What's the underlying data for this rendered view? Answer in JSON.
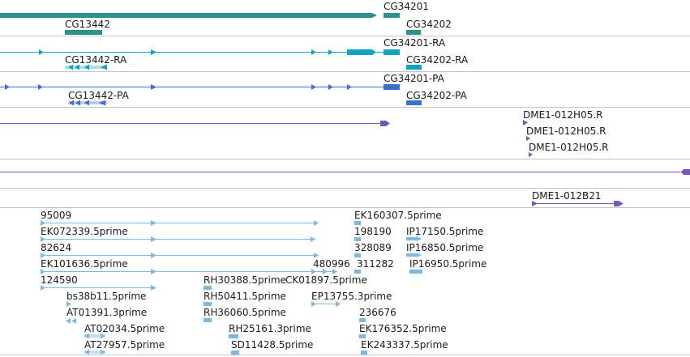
{
  "colors": {
    "gene": "#2f8f8f",
    "transcript_ra": "#12a3bd",
    "transcript_pa": "#3b6fd0",
    "clone": "#7757b8",
    "est": "#7fb8de",
    "divider": "#c4c4c4"
  },
  "tracks": {
    "genes": {
      "labels": [
        "CG34201",
        "CG13442",
        "CG34202"
      ]
    },
    "transcripts_ra": {
      "labels": [
        "CG34201-RA",
        "CG13442-RA",
        "CG34202-RA"
      ]
    },
    "transcripts_pa": {
      "labels": [
        "CG34201-PA",
        "CG13442-PA",
        "CG34202-PA"
      ]
    },
    "clone_ends": {
      "labels": [
        "DME1-012H05.R",
        "DME1-012H05.R",
        "DME1-012H05.R"
      ]
    },
    "clone_pairs": {
      "labels": [
        "DME1-012B21"
      ]
    },
    "ests": {
      "labels": [
        "95009",
        "EK072339.5prime",
        "82624",
        "EK101636.5prime",
        "124590",
        "bs38b11.5prime",
        "AT01391.3prime",
        "AT02034.5prime",
        "AT27957.5prime",
        "RH30388.5prime",
        "RH50411.5prime",
        "RH36060.5prime",
        "RH25161.3prime",
        "SD11428.5prime",
        "480996",
        "CK01897.5prime",
        "EP13755.3prime",
        "EK160307.5prime",
        "198190",
        "328089",
        "311282",
        "IP17150.5prime",
        "IP16850.5prime",
        "IP16950.5prime",
        "236676",
        "EK176352.5prime",
        "EK243337.5prime"
      ]
    }
  }
}
